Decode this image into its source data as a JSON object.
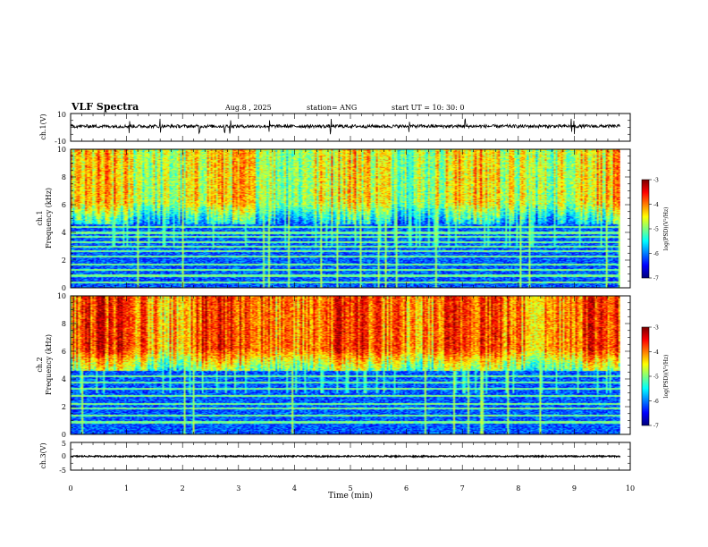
{
  "header": {
    "title": "VLF Spectra",
    "date": "Aug.8 , 2025",
    "station": "station= ANG",
    "start": "start UT = 10: 30: 0"
  },
  "chart_data": [
    {
      "type": "line",
      "name": "ch1-waveform",
      "ylabel": "ch.1(V)",
      "ylim": [
        -10,
        10
      ],
      "yticks": [
        "10",
        "-10"
      ],
      "baseline": 0.8,
      "noise_amplitude": 1.2,
      "spike_times_min": [
        1.05,
        1.6,
        2.3,
        2.75,
        2.85,
        3.55,
        4.65,
        6.05,
        7.05,
        8.95,
        9.0
      ]
    },
    {
      "type": "heatmap",
      "name": "ch1-spectrogram",
      "ylabel": "ch.1",
      "ylabel2": "Frequency (kHz)",
      "xlim": [
        0,
        10
      ],
      "ylim": [
        0,
        10
      ],
      "yticks": [
        "0",
        "2",
        "4",
        "6",
        "8",
        "10"
      ],
      "colorbar": {
        "label": "log(PSD)(V²/Hz)",
        "ticks": [
          "-3",
          "-4",
          "-5",
          "-6",
          "-7"
        ],
        "range": [
          -7,
          -3
        ]
      },
      "line_freqs_khz": [
        0.4,
        0.9,
        1.3,
        1.7,
        2.3,
        2.7,
        3.0,
        3.3,
        3.7,
        4.0,
        4.4,
        4.7
      ],
      "upper_level": -4.6
    },
    {
      "type": "heatmap",
      "name": "ch2-spectrogram",
      "ylabel": "ch.2",
      "ylabel2": "Frequency (kHz)",
      "xlim": [
        0,
        10
      ],
      "ylim": [
        0,
        10
      ],
      "yticks": [
        "0",
        "2",
        "4",
        "6",
        "8",
        "10"
      ],
      "colorbar": {
        "label": "log(PSD)(V²/Hz)",
        "ticks": [
          "-3",
          "-4",
          "-5",
          "-6",
          "-7"
        ],
        "range": [
          -7,
          -3
        ]
      },
      "line_freqs_khz": [
        0.9,
        1.4,
        1.9,
        2.2,
        2.8,
        3.3,
        3.8,
        4.2
      ],
      "upper_level": -3.9
    },
    {
      "type": "line",
      "name": "ch3-waveform",
      "ylabel": "ch.3(V)",
      "ylim": [
        -5,
        5
      ],
      "yticks": [
        "5",
        "0",
        "-5"
      ],
      "baseline": 0,
      "noise_amplitude": 0.25
    }
  ],
  "xaxis": {
    "label": "Time (min)",
    "range": [
      0,
      10
    ],
    "ticks": [
      "0",
      "1",
      "2",
      "3",
      "4",
      "5",
      "6",
      "7",
      "8",
      "9",
      "10"
    ],
    "data_end_min": 9.82
  }
}
